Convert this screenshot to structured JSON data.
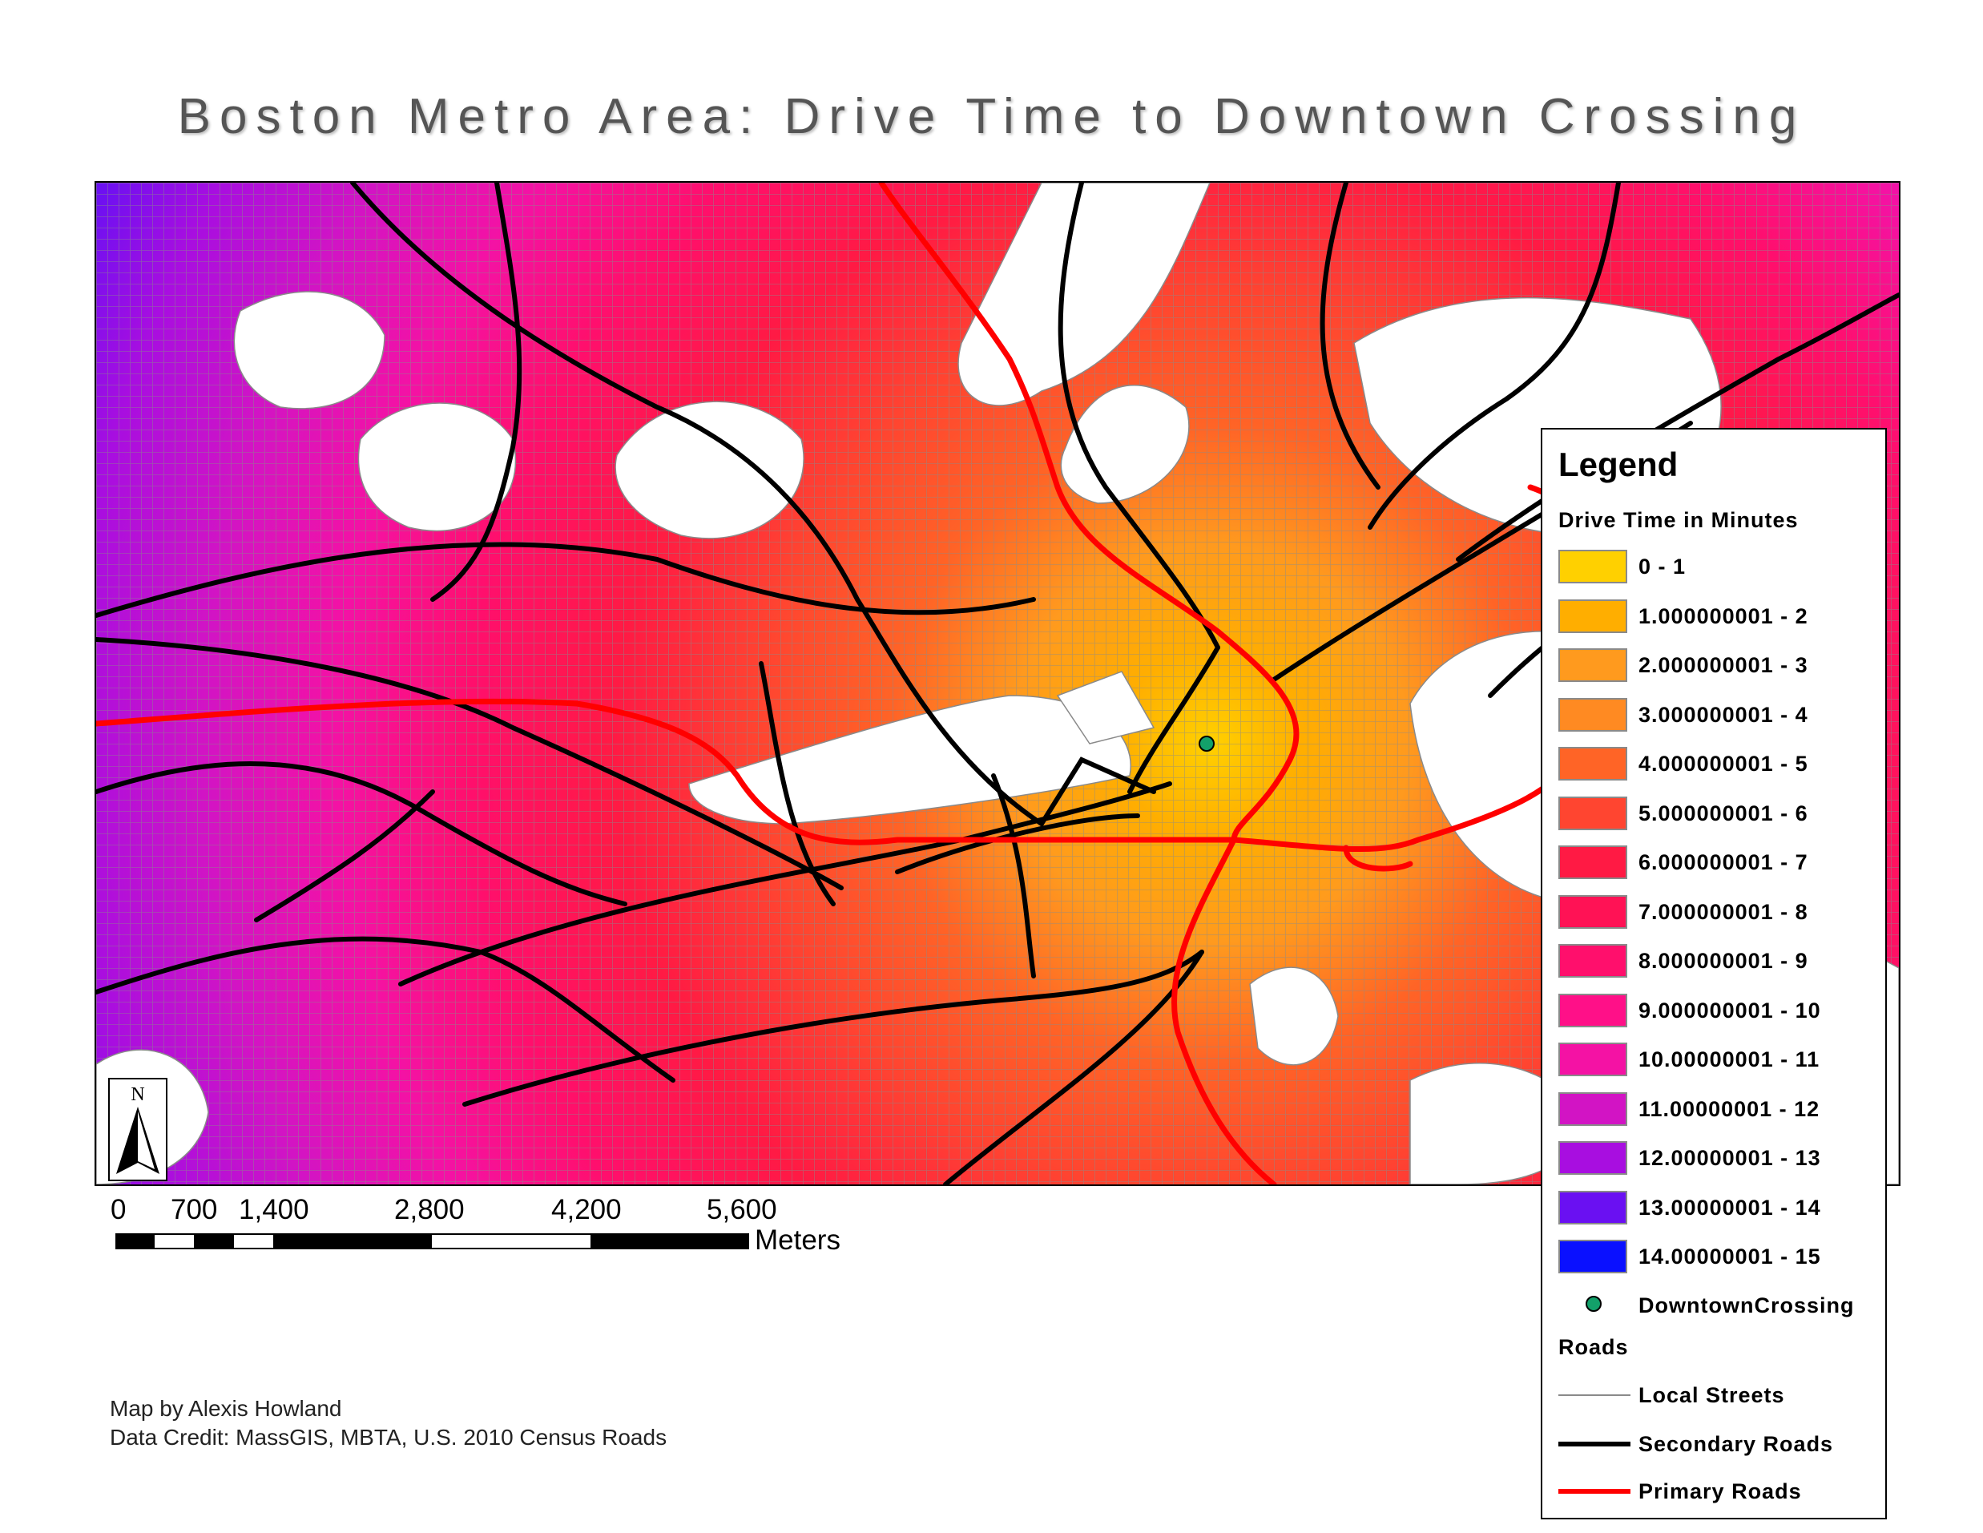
{
  "title": "Boston Metro Area: Drive Time to Downtown Crossing",
  "legend": {
    "title": "Legend",
    "drive_time_heading": "Drive Time in Minutes",
    "classes": [
      {
        "label": "0 - 1",
        "color": "#ffd000"
      },
      {
        "label": "1.000000001 - 2",
        "color": "#ffae00"
      },
      {
        "label": "2.000000001 - 3",
        "color": "#ff9a1e"
      },
      {
        "label": "3.000000001 - 4",
        "color": "#ff8a22"
      },
      {
        "label": "4.000000001 - 5",
        "color": "#ff6426"
      },
      {
        "label": "5.000000001 - 6",
        "color": "#ff4530"
      },
      {
        "label": "6.000000001 - 7",
        "color": "#ff1a44"
      },
      {
        "label": "7.000000001 - 8",
        "color": "#ff1255"
      },
      {
        "label": "8.000000001 - 9",
        "color": "#ff0f6c"
      },
      {
        "label": "9.000000001 - 10",
        "color": "#ff1088"
      },
      {
        "label": "10.00000001 - 11",
        "color": "#f412a4"
      },
      {
        "label": "11.00000001 - 12",
        "color": "#d214c4"
      },
      {
        "label": "12.00000001 - 13",
        "color": "#a80ee0"
      },
      {
        "label": "13.00000001 - 14",
        "color": "#6a10f2"
      },
      {
        "label": "14.00000001 - 15",
        "color": "#0a10ff"
      }
    ],
    "point_label": "DowntownCrossing",
    "point_color": "#13a06a",
    "roads_heading": "Roads",
    "roads": [
      {
        "label": "Local Streets",
        "color": "#8a8a8a"
      },
      {
        "label": "Secondary Roads",
        "color": "#000000"
      },
      {
        "label": "Primary Roads",
        "color": "#ff0000"
      }
    ]
  },
  "scale_bar": {
    "labels": [
      "0",
      "700",
      "1,400",
      "2,800",
      "4,200",
      "5,600"
    ],
    "unit": "Meters"
  },
  "north_label": "N",
  "credits": {
    "author": "Map by Alexis Howland",
    "data": "Data Credit: MassGIS, MBTA, U.S. 2010 Census Roads"
  }
}
